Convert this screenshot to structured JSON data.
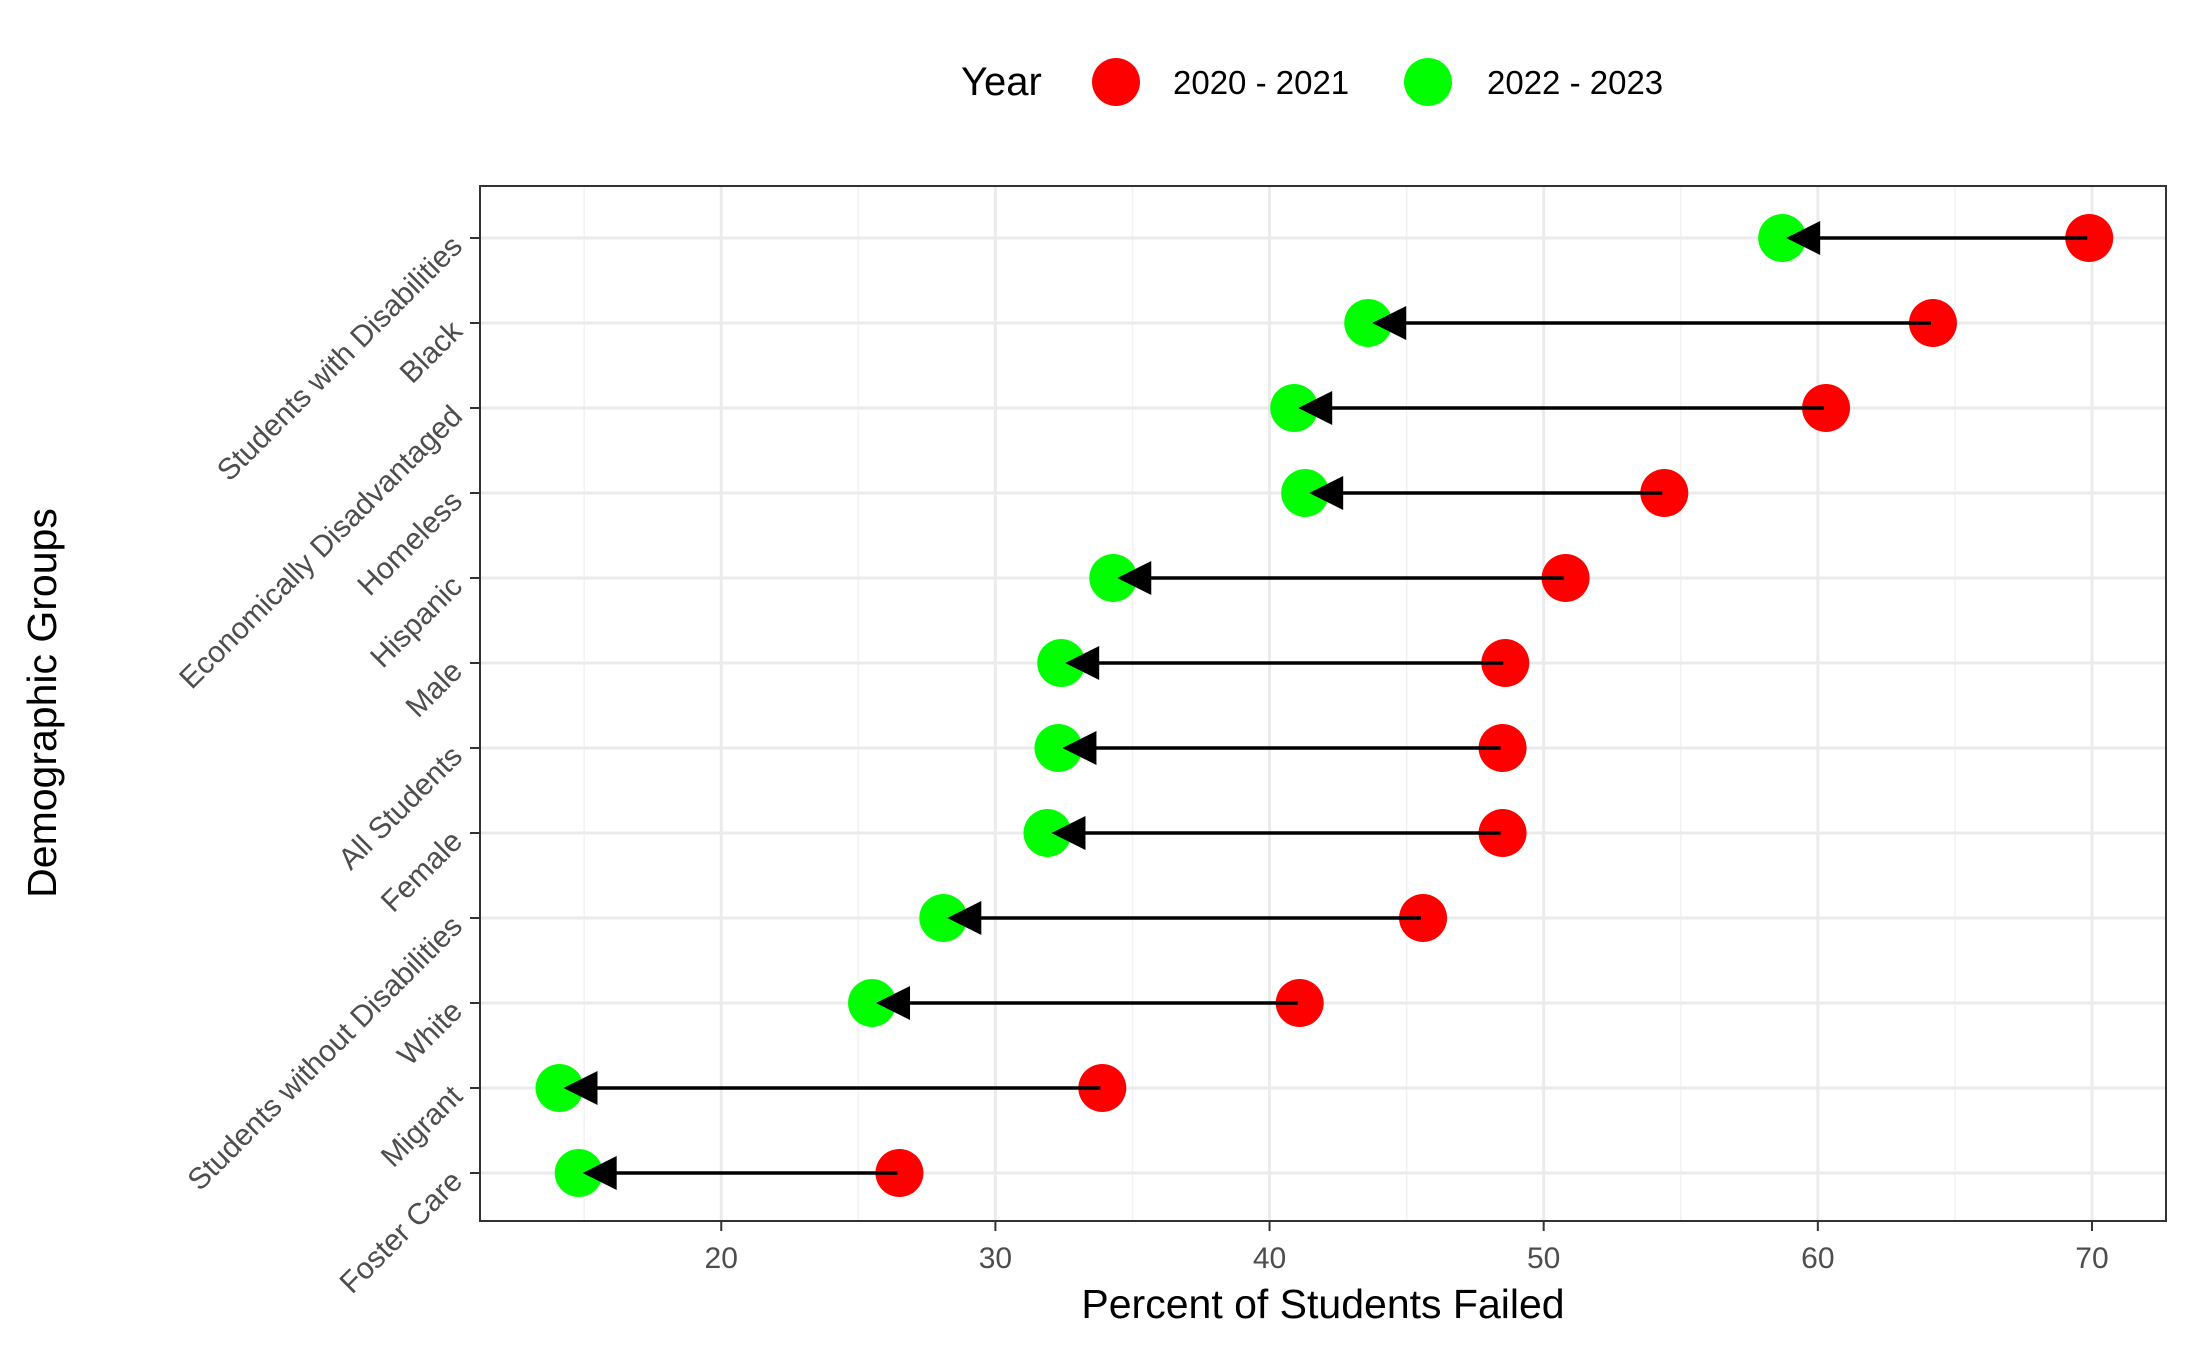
{
  "chart_data": {
    "type": "dumbbell",
    "title": "",
    "xlabel": "Percent of Students Failed",
    "ylabel": "Demographic Groups",
    "xlim": [
      11.2,
      72.7
    ],
    "x_ticks": [
      20,
      30,
      40,
      50,
      60,
      70
    ],
    "grid": true,
    "legend": {
      "title": "Year",
      "position": "top",
      "entries": [
        {
          "label": "2020 - 2021",
          "color": "#ff0000"
        },
        {
          "label": "2022 - 2023",
          "color": "#00ff00"
        }
      ]
    },
    "arrow_direction": "from 2020 - 2021 to 2022 - 2023",
    "categories": [
      "Students with Disabilities",
      "Black",
      "Economically Disadvantaged",
      "Homeless",
      "Hispanic",
      "Male",
      "All Students",
      "Female",
      "Students without Disabilities",
      "White",
      "Migrant",
      "Foster Care"
    ],
    "series": [
      {
        "name": "2020 - 2021",
        "color": "#ff0000",
        "values": [
          69.9,
          64.2,
          60.3,
          54.4,
          50.8,
          48.6,
          48.5,
          48.5,
          45.6,
          41.1,
          33.9,
          26.5
        ]
      },
      {
        "name": "2022 - 2023",
        "color": "#00ff00",
        "values": [
          58.7,
          43.6,
          40.9,
          41.3,
          34.3,
          32.4,
          32.3,
          31.9,
          28.1,
          25.5,
          14.1,
          14.8
        ]
      }
    ]
  }
}
